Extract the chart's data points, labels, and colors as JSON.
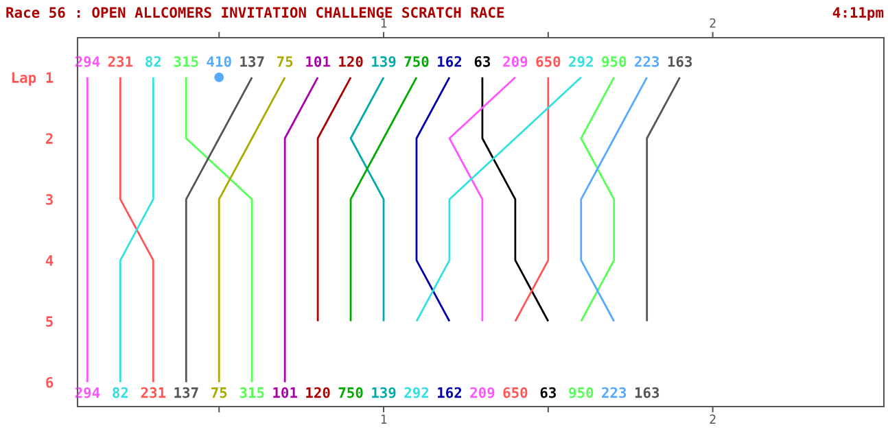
{
  "chart_data": {
    "type": "line",
    "title": "Race 56 : OPEN ALLCOMERS INVITATION CHALLENGE SCRATCH RACE",
    "annotations": [
      "4:11pm"
    ],
    "xlim": [
      0.07,
      2.52
    ],
    "xticks": [
      {
        "value": 0.5,
        "label": null
      },
      1,
      {
        "value": 1.5,
        "label": null
      },
      2
    ],
    "x2lim": [
      0.07,
      2.52
    ],
    "x2ticks": [
      {
        "value": 0.5,
        "label": null
      },
      1,
      {
        "value": 1.5,
        "label": null
      },
      2
    ],
    "ylim": [
      6.4,
      0.35
    ],
    "yticks": [
      {
        "value": 1,
        "label": "Lap 1"
      },
      2,
      3,
      4,
      5,
      6
    ],
    "grid": false,
    "legend": false,
    "marker": "none",
    "line_style": "solid",
    "series": [
      {
        "name": "294",
        "color": "#ff55ff",
        "x": [
          0.1,
          0.1,
          0.1,
          0.1,
          0.1,
          0.1
        ],
        "values": [
          1,
          2,
          3,
          4,
          5,
          6
        ]
      },
      {
        "name": "231",
        "color": "#ff5555",
        "x": [
          0.2,
          0.2,
          0.2,
          0.3,
          0.3,
          0.3
        ],
        "values": [
          1,
          2,
          3,
          4,
          5,
          6
        ]
      },
      {
        "name": "82",
        "color": "#33e0e0",
        "x": [
          0.3,
          0.3,
          0.3,
          0.2,
          0.2,
          0.2
        ],
        "values": [
          1,
          2,
          3,
          4,
          5,
          6
        ]
      },
      {
        "name": "315",
        "color": "#55ff55",
        "x": [
          0.4,
          0.4,
          0.6,
          0.6,
          0.6,
          0.6
        ],
        "values": [
          1,
          2,
          3,
          4,
          5,
          6
        ]
      },
      {
        "name": "410",
        "color": "#55aaff",
        "marker": "circle",
        "x": [
          0.5
        ],
        "values": [
          1
        ]
      },
      {
        "name": "137",
        "color": "#555555",
        "x": [
          0.6,
          0.5,
          0.4,
          0.4,
          0.4,
          0.4
        ],
        "values": [
          1,
          2,
          3,
          4,
          5,
          6
        ]
      },
      {
        "name": "75",
        "color": "#aaaa00",
        "x": [
          0.7,
          0.6,
          0.5,
          0.5,
          0.5,
          0.5
        ],
        "values": [
          1,
          2,
          3,
          4,
          5,
          6
        ]
      },
      {
        "name": "101",
        "color": "#aa00aa",
        "x": [
          0.8,
          0.7,
          0.7,
          0.7,
          0.7,
          0.7
        ],
        "values": [
          1,
          2,
          3,
          4,
          5,
          6
        ]
      },
      {
        "name": "120",
        "color": "#aa0000",
        "x": [
          0.9,
          0.8,
          0.8,
          0.8,
          0.8
        ],
        "values": [
          1,
          2,
          3,
          4,
          5
        ]
      },
      {
        "name": "139",
        "color": "#00aaaa",
        "x": [
          1.0,
          0.9,
          1.0,
          1.0,
          1.0
        ],
        "values": [
          1,
          2,
          3,
          4,
          5
        ]
      },
      {
        "name": "750",
        "color": "#00aa00",
        "x": [
          1.1,
          1.0,
          0.9,
          0.9,
          0.9
        ],
        "values": [
          1,
          2,
          3,
          4,
          5
        ]
      },
      {
        "name": "162",
        "color": "#0000aa",
        "x": [
          1.2,
          1.1,
          1.1,
          1.1,
          1.2
        ],
        "values": [
          1,
          2,
          3,
          4,
          5
        ]
      },
      {
        "name": "63",
        "color": "#000000",
        "x": [
          1.3,
          1.3,
          1.4,
          1.4,
          1.5
        ],
        "values": [
          1,
          2,
          3,
          4,
          5
        ]
      },
      {
        "name": "209",
        "color": "#ff55ff",
        "x": [
          1.4,
          1.2,
          1.3,
          1.3,
          1.3
        ],
        "values": [
          1,
          2,
          3,
          4,
          5
        ]
      },
      {
        "name": "650",
        "color": "#ff5555",
        "x": [
          1.5,
          1.5,
          1.5,
          1.5,
          1.4
        ],
        "values": [
          1,
          2,
          3,
          4,
          5
        ]
      },
      {
        "name": "292",
        "color": "#33e0e0",
        "x": [
          1.6,
          1.4,
          1.2,
          1.2,
          1.1
        ],
        "values": [
          1,
          2,
          3,
          4,
          5
        ]
      },
      {
        "name": "950",
        "color": "#55ff55",
        "x": [
          1.7,
          1.6,
          1.7,
          1.7,
          1.6
        ],
        "values": [
          1,
          2,
          3,
          4,
          5
        ]
      },
      {
        "name": "223",
        "color": "#55aaff",
        "x": [
          1.8,
          1.7,
          1.6,
          1.6,
          1.7
        ],
        "values": [
          1,
          2,
          3,
          4,
          5
        ]
      },
      {
        "name": "163",
        "color": "#555555",
        "x": [
          1.9,
          1.8,
          1.8,
          1.8,
          1.8
        ],
        "values": [
          1,
          2,
          3,
          4,
          5
        ]
      }
    ]
  }
}
